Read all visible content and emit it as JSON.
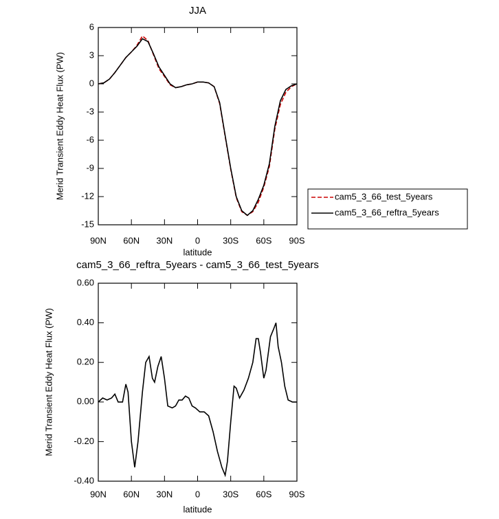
{
  "chart_data": [
    {
      "type": "line",
      "title": "JJA",
      "xlabel": "latitude",
      "ylabel": "Merid Transient Eddy Heat Flux (PW)",
      "x": [
        90,
        85,
        80,
        75,
        70,
        65,
        60,
        55,
        50,
        45,
        40,
        35,
        30,
        25,
        20,
        15,
        10,
        5,
        0,
        -5,
        -10,
        -15,
        -20,
        -25,
        -30,
        -35,
        -40,
        -45,
        -50,
        -55,
        -60,
        -65,
        -70,
        -75,
        -80,
        -85,
        -90
      ],
      "series": [
        {
          "name": "cam5_3_66_test_5years",
          "color": "#cc0000",
          "dash": true,
          "values": [
            0,
            0.1,
            0.5,
            1.2,
            2.0,
            2.8,
            3.4,
            4.1,
            5.1,
            4.6,
            3.1,
            1.6,
            0.8,
            -0.1,
            -0.4,
            -0.3,
            -0.1,
            0,
            0.2,
            0.2,
            0.1,
            -0.3,
            -2.1,
            -5.6,
            -9.1,
            -12.1,
            -13.6,
            -14.0,
            -13.6,
            -12.6,
            -11.0,
            -8.8,
            -4.8,
            -2.2,
            -0.9,
            -0.3,
            0
          ]
        },
        {
          "name": "cam5_3_66_reftra_5years",
          "color": "#000000",
          "dash": false,
          "values": [
            0,
            0.1,
            0.5,
            1.2,
            2.0,
            2.8,
            3.4,
            4.0,
            4.8,
            4.5,
            3.2,
            1.8,
            0.9,
            0,
            -0.4,
            -0.3,
            -0.1,
            0,
            0.2,
            0.2,
            0.1,
            -0.3,
            -2.0,
            -5.5,
            -9.0,
            -12.0,
            -13.5,
            -14.0,
            -13.5,
            -12.3,
            -10.8,
            -8.5,
            -4.5,
            -1.8,
            -0.6,
            -0.2,
            0
          ]
        }
      ],
      "xlim": [
        90,
        -90
      ],
      "xticks": [
        {
          "value": 90,
          "label": "90N"
        },
        {
          "value": 60,
          "label": "60N"
        },
        {
          "value": 30,
          "label": "30N"
        },
        0,
        {
          "value": -30,
          "label": "30S"
        },
        {
          "value": -60,
          "label": "60S"
        },
        {
          "value": -90,
          "label": "90S"
        }
      ],
      "ylim": [
        -15,
        6
      ],
      "yticks": [
        6,
        3,
        0,
        -3,
        -6,
        -9,
        -12,
        -15
      ],
      "legend": "outside-right"
    },
    {
      "type": "line",
      "title": "cam5_3_66_reftra_5years - cam5_3_66_test_5years",
      "xlabel": "latitude",
      "ylabel": "Merid Transient Eddy Heat Flux (PW)",
      "x": [
        90,
        86,
        82,
        78,
        75,
        72,
        68,
        65,
        63,
        60,
        57,
        54,
        50,
        47,
        44,
        41,
        39,
        36,
        33,
        30,
        27,
        23,
        20,
        17,
        14,
        11,
        8,
        5,
        2,
        -2,
        -6,
        -10,
        -14,
        -18,
        -22,
        -25,
        -27,
        -30,
        -33,
        -35,
        -38,
        -42,
        -46,
        -50,
        -53,
        -55,
        -57,
        -60,
        -62,
        -66,
        -69,
        -71,
        -73,
        -76,
        -79,
        -82,
        -86,
        -90
      ],
      "series": [
        {
          "color": "#000000",
          "dash": false,
          "values": [
            0.0,
            0.02,
            0.01,
            0.02,
            0.04,
            0.0,
            0.0,
            0.09,
            0.05,
            -0.2,
            -0.33,
            -0.2,
            0.05,
            0.2,
            0.23,
            0.12,
            0.1,
            0.18,
            0.23,
            0.12,
            -0.02,
            -0.03,
            -0.02,
            0.01,
            0.01,
            0.03,
            0.02,
            -0.02,
            -0.03,
            -0.05,
            -0.05,
            -0.07,
            -0.15,
            -0.25,
            -0.33,
            -0.37,
            -0.3,
            -0.1,
            0.08,
            0.07,
            0.02,
            0.06,
            0.12,
            0.2,
            0.32,
            0.32,
            0.25,
            0.12,
            0.16,
            0.33,
            0.37,
            0.4,
            0.28,
            0.2,
            0.08,
            0.01,
            0.0,
            0.0
          ]
        }
      ],
      "xlim": [
        90,
        -90
      ],
      "xticks": [
        {
          "value": 90,
          "label": "90N"
        },
        {
          "value": 60,
          "label": "60N"
        },
        {
          "value": 30,
          "label": "30N"
        },
        0,
        {
          "value": -30,
          "label": "30S"
        },
        {
          "value": -60,
          "label": "60S"
        },
        {
          "value": -90,
          "label": "90S"
        }
      ],
      "ylim": [
        -0.4,
        0.6
      ],
      "yticks": [
        {
          "value": 0.6,
          "label": "0.60"
        },
        {
          "value": 0.4,
          "label": "0.40"
        },
        {
          "value": 0.2,
          "label": "0.20"
        },
        {
          "value": 0,
          "label": "0.00"
        },
        {
          "value": -0.2,
          "label": "-0.20"
        },
        {
          "value": -0.4,
          "label": "-0.40"
        }
      ]
    }
  ]
}
